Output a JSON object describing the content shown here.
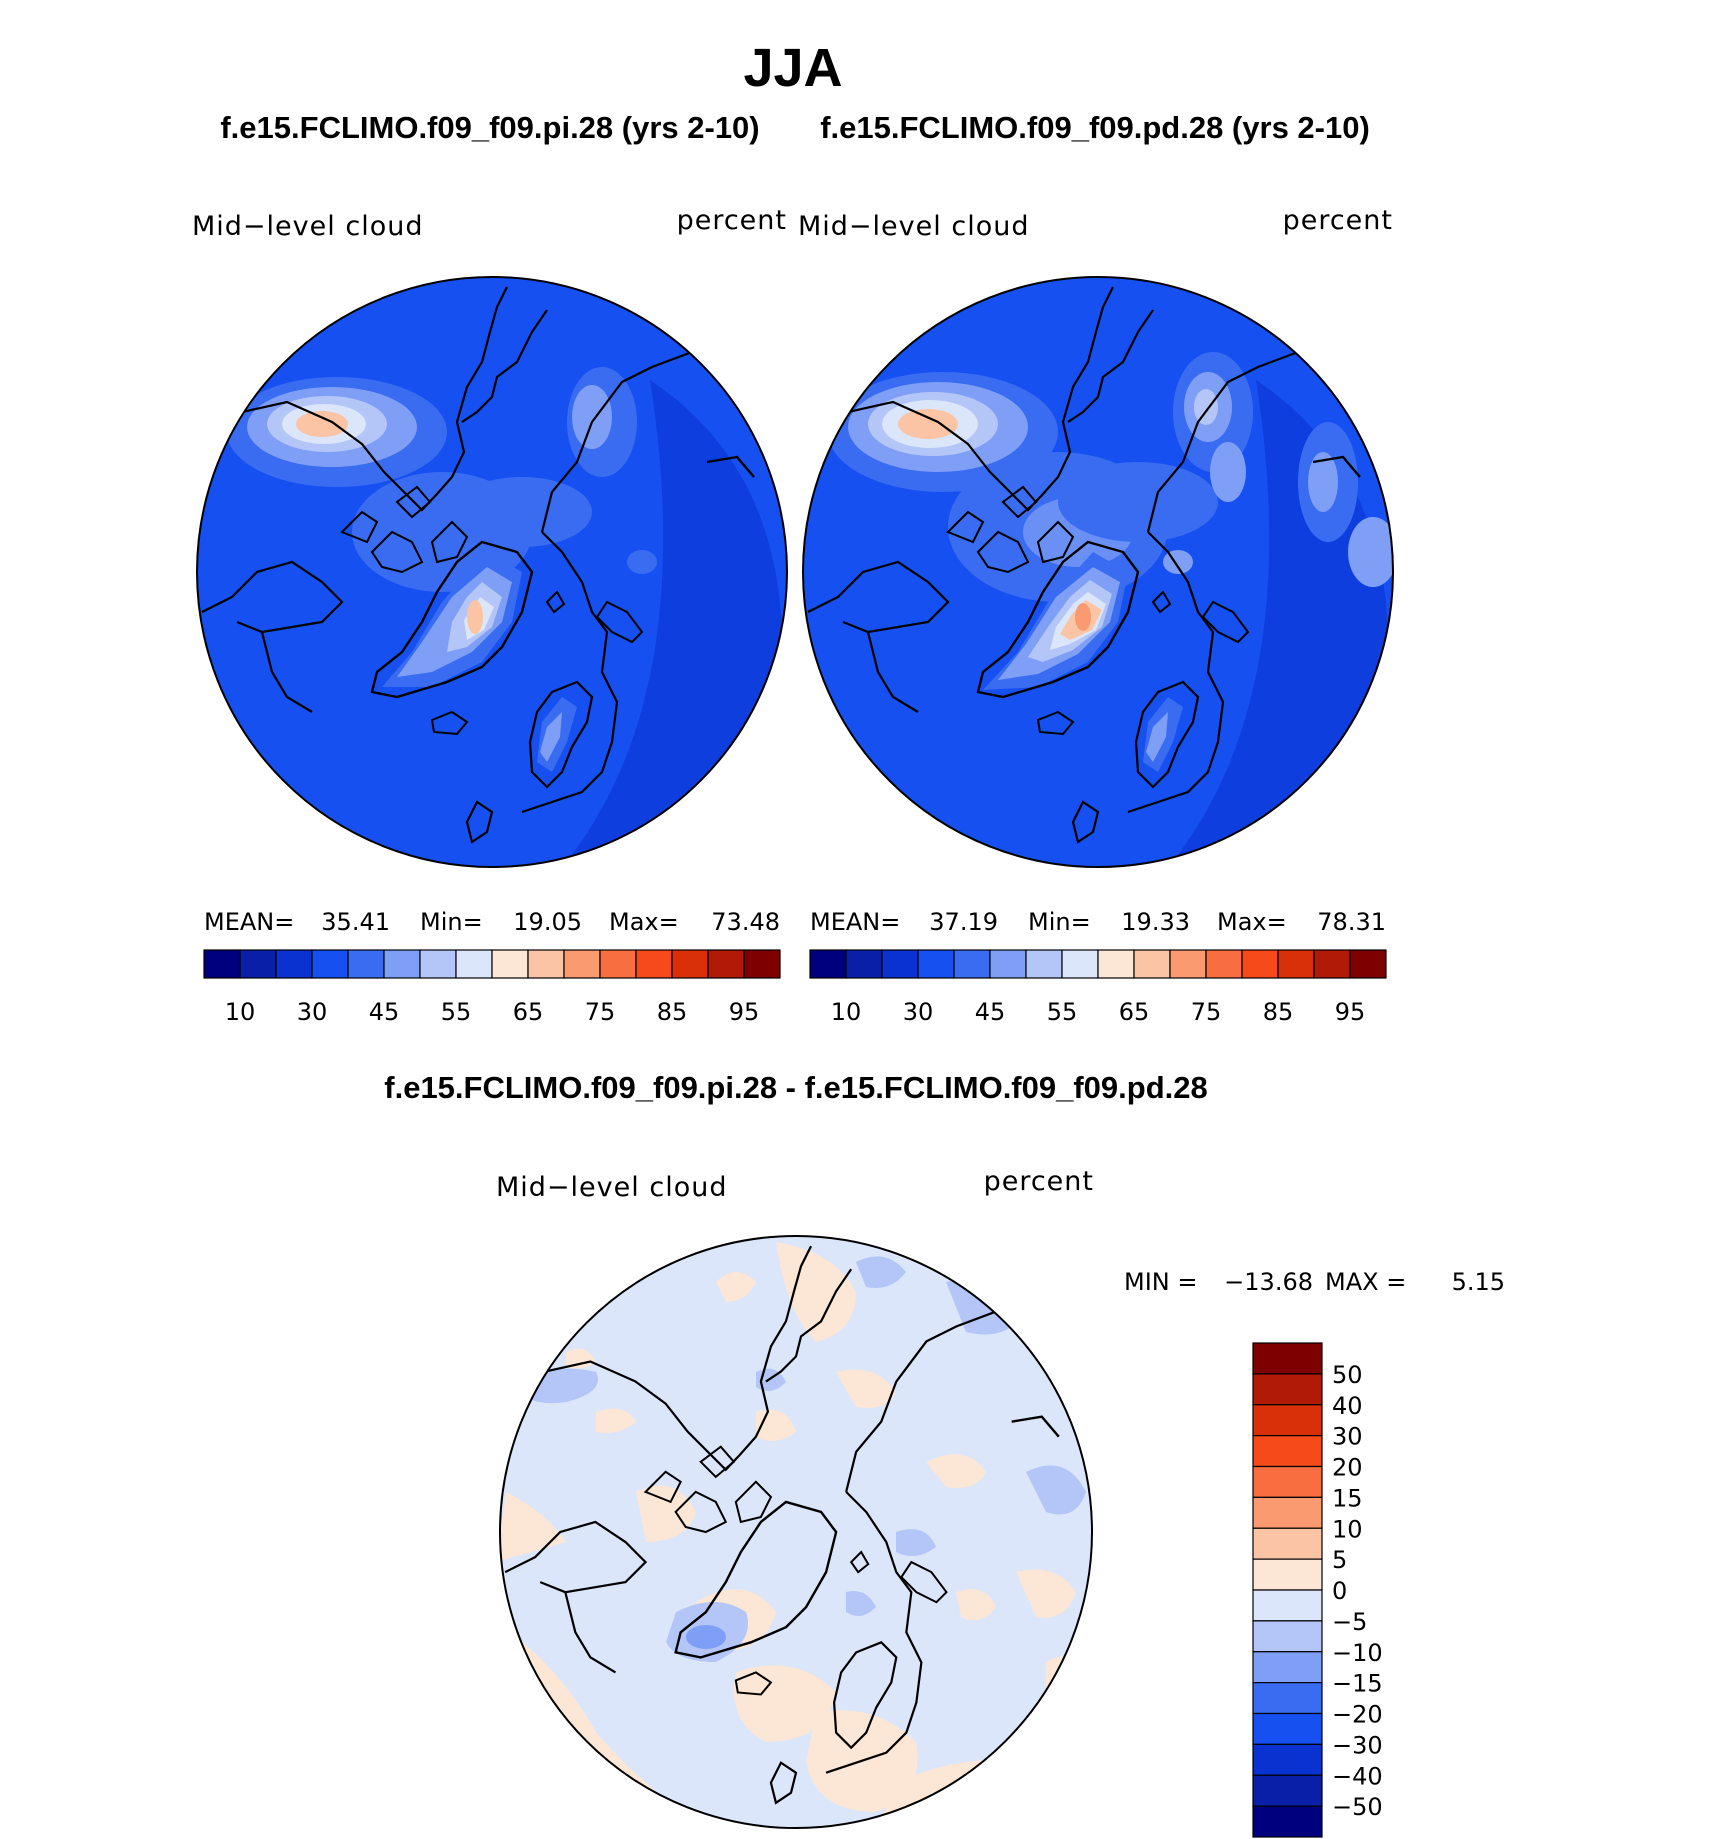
{
  "title": "JJA",
  "case_titles": {
    "left": "f.e15.FCLIMO.f09_f09.pi.28 (yrs 2-10)",
    "right": "f.e15.FCLIMO.f09_f09.pd.28 (yrs 2-10)",
    "diff": "f.e15.FCLIMO.f09_f09.pi.28 - f.e15.FCLIMO.f09_f09.pd.28"
  },
  "panels": [
    {
      "id": "pi",
      "variable": "Mid−level  cloud",
      "units": "percent",
      "stats": {
        "mean_label": "MEAN=",
        "mean": "35.41",
        "min_label": "Min=",
        "min": "19.05",
        "max_label": "Max=",
        "max": "73.48"
      }
    },
    {
      "id": "pd",
      "variable": "Mid−level  cloud",
      "units": "percent",
      "stats": {
        "mean_label": "MEAN=",
        "mean": "37.19",
        "min_label": "Min=",
        "min": "19.33",
        "max_label": "Max=",
        "max": "78.31"
      }
    },
    {
      "id": "diff",
      "variable": "Mid−level  cloud",
      "units": "percent",
      "stats": {
        "min_label": "MIN  =",
        "min": "−13.68",
        "max_label": "MAX  =",
        "max": "5.15"
      }
    }
  ],
  "abs_colorbar": {
    "colors": [
      "#00007f",
      "#0a1fa8",
      "#0a32d0",
      "#1650f0",
      "#3a6cf2",
      "#7f9ff6",
      "#b4c6f7",
      "#dbe6fb",
      "#fce6d6",
      "#fbc4a4",
      "#f99a70",
      "#f86e40",
      "#f64a1a",
      "#da300a",
      "#b01a06",
      "#7f0000"
    ],
    "tick_labels": [
      "10",
      "30",
      "45",
      "55",
      "65",
      "75",
      "85",
      "95"
    ]
  },
  "diff_colorbar": {
    "colors": [
      "#00007f",
      "#0a1fa8",
      "#0a32d0",
      "#1650f0",
      "#3a6cf2",
      "#7f9ff6",
      "#b4c6f7",
      "#dbe6fb",
      "#fce6d6",
      "#fbc4a4",
      "#f99a70",
      "#f86e40",
      "#f64a1a",
      "#da300a",
      "#b01a06",
      "#7f0000"
    ],
    "tick_labels": [
      "50",
      "40",
      "30",
      "20",
      "15",
      "10",
      "5",
      "0",
      "−5",
      "−10",
      "−15",
      "−20",
      "−30",
      "−40",
      "−50"
    ]
  },
  "map_colors": {
    "pi_base": "#1650f0",
    "pd_base": "#1650f0",
    "diff_base": "#dbe6fb",
    "level_mid": "#3a6cf2",
    "level_light": "#7f9ff6",
    "level_pale": "#b4c6f7",
    "level_cream": "#fce6d6",
    "level_salmon": "#fbc4a4",
    "level_orange": "#f99a70",
    "coast": "#000000"
  }
}
